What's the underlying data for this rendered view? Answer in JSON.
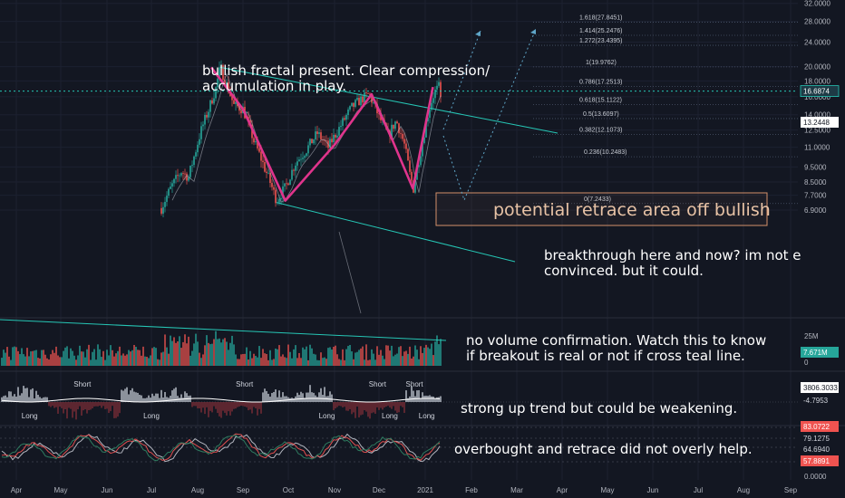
{
  "colors": {
    "background": "#131722",
    "teal": "#26c6b5",
    "pattern": "#e0348c",
    "bull": "#26a69a",
    "bear": "#ef5350",
    "fib_line": "#4a5468",
    "retrace_box": "#d3906a",
    "overbought": "#ef5350"
  },
  "annotations": {
    "fractal": "bullish fractal present. Clear compression/\naccumulation in play.",
    "retrace": "potential retrace area off bullish",
    "breakthrough": "breakthrough here and now? im not entir\nconvinced. but it could.",
    "volume": "no volume confirmation. Watch this to know\nif breakout is real or not if cross teal line.",
    "trend": "strong up trend but could be weakening.",
    "rsi": "overbought and retrace did not overly help."
  },
  "chart_data": [
    {
      "type": "candlestick",
      "panel": "price",
      "x_ticks": [
        "Apr",
        "May",
        "Jun",
        "Jul",
        "Aug",
        "Sep",
        "Oct",
        "Nov",
        "Dec",
        "2021",
        "Feb",
        "Mar",
        "Apr",
        "May",
        "Jun",
        "Jul",
        "Aug",
        "Sep"
      ],
      "y_scale": "log",
      "y_ticks": [
        "32.0000",
        "28.0000",
        "24.0000",
        "20.0000",
        "18.0000",
        "16.0000",
        "14.0000",
        "12.5000",
        "11.0000",
        "9.5000",
        "8.5000",
        "7.7000",
        "6.9000"
      ],
      "y_tick_values": [
        32,
        28,
        24,
        20,
        18,
        16,
        14,
        12.5,
        11,
        9.5,
        8.5,
        7.7,
        6.9
      ],
      "current_price_tag": "16.6874",
      "current_price": 16.6874,
      "second_price_tag": "13.2448",
      "second_price": 13.2448,
      "fib_levels": [
        {
          "label": "1.618(27.8451)",
          "value": 27.8451
        },
        {
          "label": "1.414(25.2476)",
          "value": 25.2476
        },
        {
          "label": "1.272(23.4395)",
          "value": 23.4395
        },
        {
          "label": "1(19.9762)",
          "value": 19.9762
        },
        {
          "label": "0.786(17.2513)",
          "value": 17.2513
        },
        {
          "label": "0.618(15.1122)",
          "value": 15.1122
        },
        {
          "label": "0.5(13.6097)",
          "value": 13.6097
        },
        {
          "label": "0.382(12.1073)",
          "value": 12.1073
        },
        {
          "label": "0.236(10.2483)",
          "value": 10.2483
        },
        {
          "label": "0(7.2433)",
          "value": 7.2433
        }
      ],
      "fractal_pattern": [
        {
          "date": "Aug 10",
          "price": 19.9
        },
        {
          "date": "Sep 1",
          "price": 14.6
        },
        {
          "date": "Sep 29",
          "price": 7.4
        },
        {
          "date": "Nov 1",
          "price": 11.2
        },
        {
          "date": "Nov 26",
          "price": 16.3
        },
        {
          "date": "Dec 10",
          "price": 11.5
        },
        {
          "date": "Dec 23",
          "price": 8.1
        },
        {
          "date": "Jan 6",
          "price": 17.2
        }
      ]
    },
    {
      "type": "bar",
      "panel": "volume",
      "y_ticks": [
        "25M",
        "0"
      ],
      "value_tag": "7.671M"
    },
    {
      "type": "area",
      "panel": "trend",
      "value_tags": [
        "3806.3033",
        "-4.7953"
      ],
      "signals": [
        {
          "text": "Long",
          "date": "Apr 10"
        },
        {
          "text": "Long",
          "date": "Jul 1"
        },
        {
          "text": "Short",
          "date": "May 15"
        },
        {
          "text": "Short",
          "date": "Sep 2"
        },
        {
          "text": "Long",
          "date": "Oct 26"
        },
        {
          "text": "Short",
          "date": "Nov 30"
        },
        {
          "text": "Long",
          "date": "Dec 8"
        },
        {
          "text": "Short",
          "date": "Dec 24"
        },
        {
          "text": "Long",
          "date": "Jan 2"
        }
      ]
    },
    {
      "type": "line",
      "panel": "oscillator",
      "value_tags": [
        "83.0722",
        "79.1275",
        "64.6940",
        "57.8891"
      ],
      "axis_tag": "0.0000"
    }
  ]
}
